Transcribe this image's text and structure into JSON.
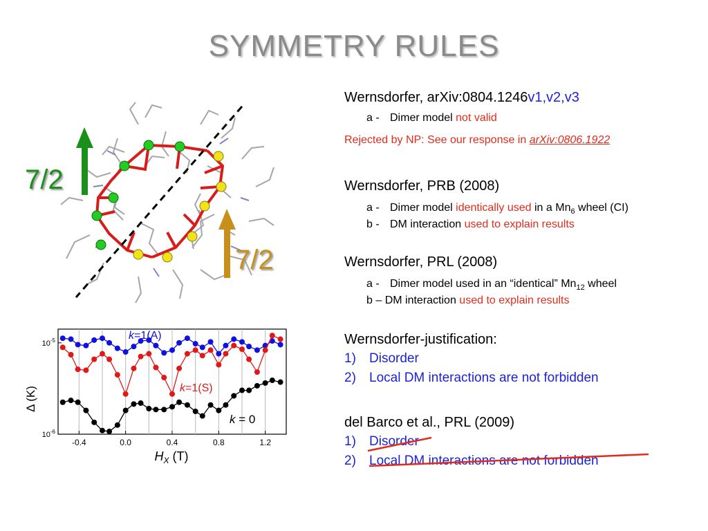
{
  "title": "SYMMETRY RULES",
  "molecule": {
    "left_label": "7/2",
    "right_label": "7/2",
    "colors": {
      "green_arrow": "#1a8f1a",
      "gold_arrow": "#c8901a",
      "green_atom": "#22cc22",
      "yellow_atom": "#f2e21a",
      "bond": "#d81c1c"
    }
  },
  "chart_data": {
    "type": "line",
    "xlabel_symbol": "H",
    "xlabel_sub": "X",
    "xlabel_unit": "(T)",
    "ylabel": "Δ (K)",
    "x_ticks": [
      "-0.4",
      "0.0",
      "0.4",
      "0.8",
      "1.2"
    ],
    "y_ticks": [
      "10",
      "10"
    ],
    "y_tick_exps": [
      "-5",
      "-6"
    ],
    "xlim": [
      -0.58,
      1.38
    ],
    "ylim_log10": [
      -6.0,
      -4.85
    ],
    "scale_y": "log",
    "grid": "vertical lines at every 0.2 T",
    "series": [
      {
        "label_k": "k",
        "label_rest": "=1(A)",
        "color": "#1010e0",
        "x": [
          -0.54,
          -0.47,
          -0.41,
          -0.34,
          -0.27,
          -0.2,
          -0.14,
          -0.07,
          0.0,
          0.07,
          0.13,
          0.2,
          0.26,
          0.33,
          0.4,
          0.46,
          0.53,
          0.6,
          0.66,
          0.73,
          0.8,
          0.86,
          0.93,
          1.0,
          1.06,
          1.13,
          1.2,
          1.26,
          1.33
        ],
        "y_log10": [
          -4.95,
          -4.96,
          -5.02,
          -5.03,
          -4.97,
          -4.95,
          -5.0,
          -5.06,
          -5.1,
          -5.04,
          -4.98,
          -4.97,
          -5.03,
          -5.11,
          -5.08,
          -5.0,
          -4.95,
          -5.01,
          -5.05,
          -4.99,
          -5.12,
          -5.03,
          -4.96,
          -4.99,
          -5.04,
          -5.08,
          -5.03,
          -4.98,
          -5.02
        ]
      },
      {
        "label_k": "k",
        "label_rest": "=1(S)",
        "color": "#e01818",
        "x": [
          -0.54,
          -0.47,
          -0.41,
          -0.34,
          -0.27,
          -0.2,
          -0.14,
          -0.07,
          0.0,
          0.07,
          0.13,
          0.2,
          0.26,
          0.33,
          0.4,
          0.46,
          0.53,
          0.6,
          0.66,
          0.73,
          0.8,
          0.86,
          0.93,
          1.0,
          1.06,
          1.13,
          1.2,
          1.26,
          1.33
        ],
        "y_log10": [
          -5.05,
          -5.13,
          -5.29,
          -5.3,
          -5.18,
          -5.12,
          -5.18,
          -5.35,
          -5.56,
          -5.28,
          -5.15,
          -5.12,
          -5.27,
          -5.38,
          -5.56,
          -5.28,
          -5.12,
          -5.08,
          -5.14,
          -5.08,
          -5.24,
          -5.12,
          -5.03,
          -5.07,
          -5.18,
          -5.32,
          -5.08,
          -4.92,
          -4.96
        ]
      },
      {
        "label_k": "k",
        "label_rest": " = 0",
        "color": "#000000",
        "x": [
          -0.54,
          -0.47,
          -0.41,
          -0.34,
          -0.27,
          -0.2,
          -0.14,
          -0.07,
          0.0,
          0.07,
          0.13,
          0.2,
          0.26,
          0.33,
          0.4,
          0.46,
          0.53,
          0.6,
          0.66,
          0.73,
          0.8,
          0.86,
          0.93,
          1.0,
          1.06,
          1.13,
          1.2,
          1.26,
          1.33
        ],
        "y_log10": [
          -5.65,
          -5.63,
          -5.65,
          -5.74,
          -5.87,
          -5.96,
          -5.97,
          -5.9,
          -5.74,
          -5.67,
          -5.66,
          -5.72,
          -5.73,
          -5.73,
          -5.7,
          -5.65,
          -5.68,
          -5.75,
          -5.8,
          -5.68,
          -5.74,
          -5.68,
          -5.58,
          -5.52,
          -5.52,
          -5.47,
          -5.44,
          -5.41,
          -5.43
        ]
      }
    ]
  },
  "refs": {
    "r1": {
      "head": "Wernsdorfer, arXiv:0804.1246",
      "versions": "v1,v2,v3",
      "item_a_mark": "a -",
      "item_a_text": "Dimer model ",
      "item_a_red": "not valid",
      "rejected_text": "Rejected by NP: See our response in ",
      "rejected_link": "arXiv:0806.1922"
    },
    "r2": {
      "head": "Wernsdorfer, PRB (2008)",
      "a_mark": "a -",
      "a_pre": "Dimer model ",
      "a_red": "identically used",
      "a_post": " in a Mn",
      "a_sub": "6",
      "a_end": " wheel (CI)",
      "b_mark": "b -",
      "b_pre": "DM interaction ",
      "b_red": "used to explain results"
    },
    "r3": {
      "head": "Wernsdorfer, PRL (2008)",
      "a_mark": "a -",
      "a_pre": "Dimer model used in an “identical” Mn",
      "a_sub": "12",
      "a_end": " wheel",
      "b_mark": "b –",
      "b_pre": "DM interaction ",
      "b_red": "used to explain results"
    },
    "r4": {
      "head": "Wernsdorfer-justification:",
      "n1": "1)",
      "t1": "Disorder",
      "n2": "2)",
      "t2": "Local DM interactions are not forbidden"
    },
    "r5": {
      "head": "del Barco et al., PRL (2009)",
      "n1": "1)",
      "t1": "Disorder",
      "n2": "2)",
      "t2": "Local DM interactions are not forbidden"
    }
  }
}
